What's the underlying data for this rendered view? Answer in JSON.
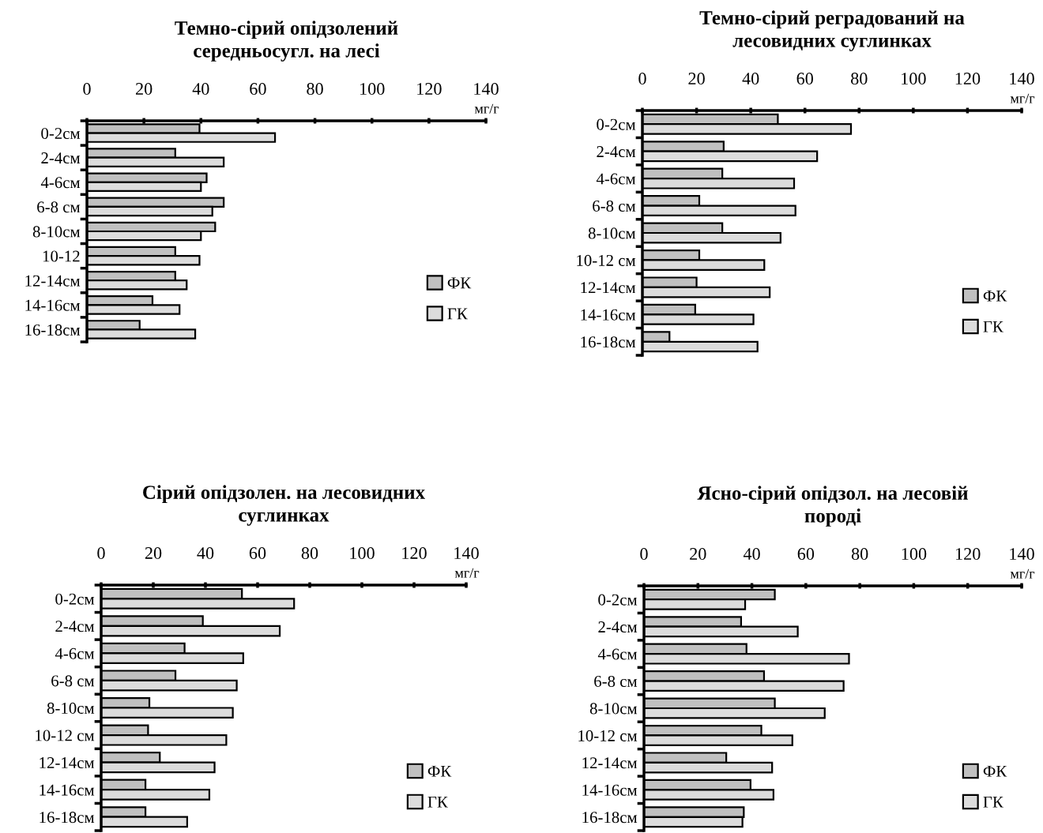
{
  "chart_data": [
    {
      "type": "bar",
      "orientation": "horizontal",
      "title": "Темно-сірий опідзолений\nсередньосугл. на лесі",
      "xlabel": "мг/г",
      "categories": [
        "0-2см",
        "2-4см",
        "4-6см",
        "6-8 см",
        "8-10см",
        "10-12",
        "12-14см",
        "14-16см",
        "16-18см"
      ],
      "xlim": [
        0,
        140
      ],
      "xticks": [
        0,
        20,
        40,
        60,
        80,
        100,
        120,
        140
      ],
      "grid": false,
      "legend": "bottom right",
      "series": [
        {
          "name": "ФК",
          "color": "#c0c0c0",
          "values": [
            39.5,
            31,
            42,
            48,
            45,
            31,
            31,
            23,
            18.5
          ]
        },
        {
          "name": "ГК",
          "color": "#dcdcdc",
          "values": [
            66,
            48,
            40,
            44,
            40,
            39.5,
            35,
            32.5,
            38
          ]
        }
      ]
    },
    {
      "type": "bar",
      "orientation": "horizontal",
      "title": "Темно-сірий реградований на\nлесовидних суглинках",
      "xlabel": "мг/г",
      "categories": [
        "0-2см",
        "2-4см",
        "4-6см",
        "6-8 см",
        "8-10см",
        "10-12 см",
        "12-14см",
        "14-16см",
        "16-18см"
      ],
      "xlim": [
        0,
        140
      ],
      "xticks": [
        0,
        20,
        40,
        60,
        80,
        100,
        120,
        140
      ],
      "grid": false,
      "legend": "bottom right",
      "series": [
        {
          "name": "ФК",
          "color": "#c0c0c0",
          "values": [
            50,
            30,
            29.5,
            21,
            29.5,
            21,
            20,
            19.5,
            10
          ]
        },
        {
          "name": "ГК",
          "color": "#dcdcdc",
          "values": [
            77,
            64.5,
            56,
            56.5,
            51,
            45,
            47,
            41,
            42.5
          ]
        }
      ]
    },
    {
      "type": "bar",
      "orientation": "horizontal",
      "title": "Сірий опідзолен. на лесовидних\nсуглинках",
      "xlabel": "мг/г",
      "categories": [
        "0-2см",
        "2-4см",
        "4-6см",
        "6-8 см",
        "8-10см",
        "10-12 см",
        "12-14см",
        "14-16см",
        "16-18см"
      ],
      "xlim": [
        0,
        140
      ],
      "xticks": [
        0,
        20,
        40,
        60,
        80,
        100,
        120,
        140
      ],
      "grid": false,
      "legend": "bottom right",
      "series": [
        {
          "name": "ФК",
          "color": "#c0c0c0",
          "values": [
            54,
            39,
            32,
            28.5,
            18.5,
            18,
            22.5,
            17,
            17
          ]
        },
        {
          "name": "ГК",
          "color": "#dcdcdc",
          "values": [
            74,
            68.5,
            54.5,
            52,
            50.5,
            48,
            43.5,
            41.5,
            33
          ]
        }
      ]
    },
    {
      "type": "bar",
      "orientation": "horizontal",
      "title": "Ясно-сірий опідзол. на лесовій\nпороді",
      "xlabel": "мг/г",
      "categories": [
        "0-2см",
        "2-4см",
        "4-6см",
        "6-8 см",
        "8-10см",
        "10-12 см",
        "12-14см",
        "14-16см",
        "16-18см"
      ],
      "xlim": [
        0,
        140
      ],
      "xticks": [
        0,
        20,
        40,
        60,
        80,
        100,
        120,
        140
      ],
      "grid": false,
      "legend": "bottom right",
      "series": [
        {
          "name": "ФК",
          "color": "#c0c0c0",
          "values": [
            48.5,
            36,
            38,
            44.5,
            48.5,
            43.5,
            30.5,
            39.5,
            37
          ]
        },
        {
          "name": "ГК",
          "color": "#dcdcdc",
          "values": [
            37.5,
            57,
            76,
            74,
            67,
            55,
            47.5,
            48,
            36.5
          ]
        }
      ]
    }
  ]
}
